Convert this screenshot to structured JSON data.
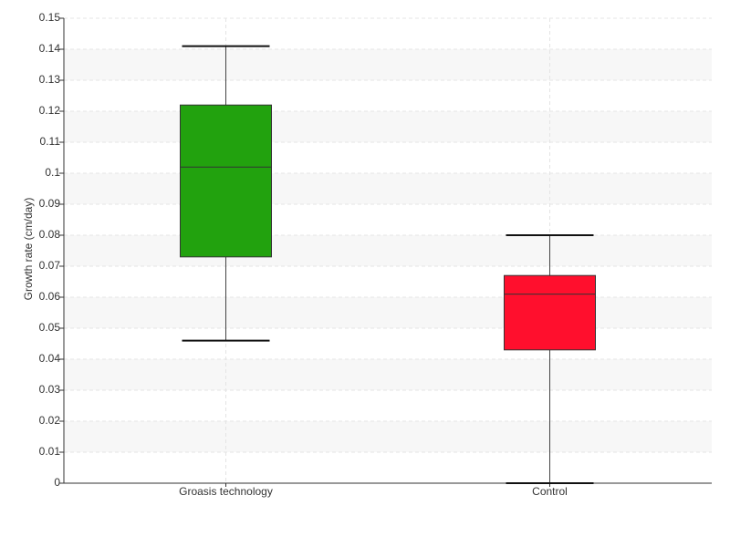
{
  "chart_data": {
    "type": "box",
    "y_label": "Growth rate (cm/day)",
    "categories": [
      "Groasis technology",
      "Control"
    ],
    "boxes": [
      {
        "whisker_low": 0.046,
        "q1": 0.073,
        "median": 0.102,
        "q3": 0.122,
        "whisker_high": 0.141,
        "color": "#22a20e"
      },
      {
        "whisker_low": 0,
        "q1": 0.043,
        "median": 0.061,
        "q3": 0.067,
        "whisker_high": 0.08,
        "color": "#ff0f2d"
      }
    ],
    "ylim": [
      0,
      0.15
    ],
    "yticks": [
      0,
      0.01,
      0.02,
      0.03,
      0.04,
      0.05,
      0.06,
      0.07,
      0.08,
      0.09,
      0.1,
      0.11,
      0.12,
      0.13,
      0.14,
      0.15
    ],
    "grid": true
  }
}
